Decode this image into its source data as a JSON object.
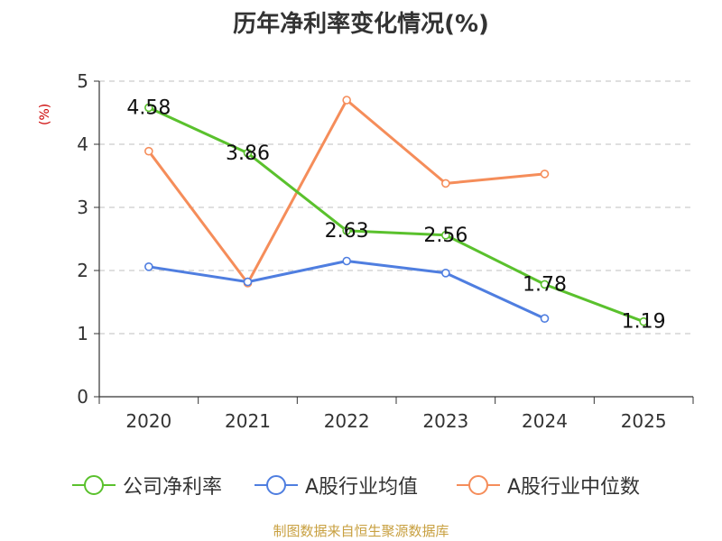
{
  "chart_data": {
    "type": "line",
    "title": "历年净利率变化情况(%)",
    "ylabel": "(%)",
    "xlabel": "",
    "categories": [
      "2020",
      "2021",
      "2022",
      "2023",
      "2024",
      "2025"
    ],
    "ylim": [
      0,
      5
    ],
    "yticks": [
      0,
      1,
      2,
      3,
      4,
      5
    ],
    "grid": true,
    "legend_position": "bottom",
    "series": [
      {
        "name": "公司净利率",
        "color": "#5ac12d",
        "values": [
          4.58,
          3.86,
          2.63,
          2.56,
          1.78,
          1.19
        ],
        "show_labels": true,
        "labels": [
          "4.58",
          "3.86",
          "2.63",
          "2.56",
          "1.78",
          "1.19"
        ]
      },
      {
        "name": "A股行业均值",
        "color": "#4f7ee0",
        "values": [
          2.06,
          1.82,
          2.15,
          1.96,
          1.24,
          null
        ],
        "show_labels": false
      },
      {
        "name": "A股行业中位数",
        "color": "#f58d5a",
        "values": [
          3.89,
          1.8,
          4.7,
          3.38,
          3.53,
          null
        ],
        "show_labels": false
      }
    ]
  },
  "source": "制图数据来自恒生聚源数据库"
}
